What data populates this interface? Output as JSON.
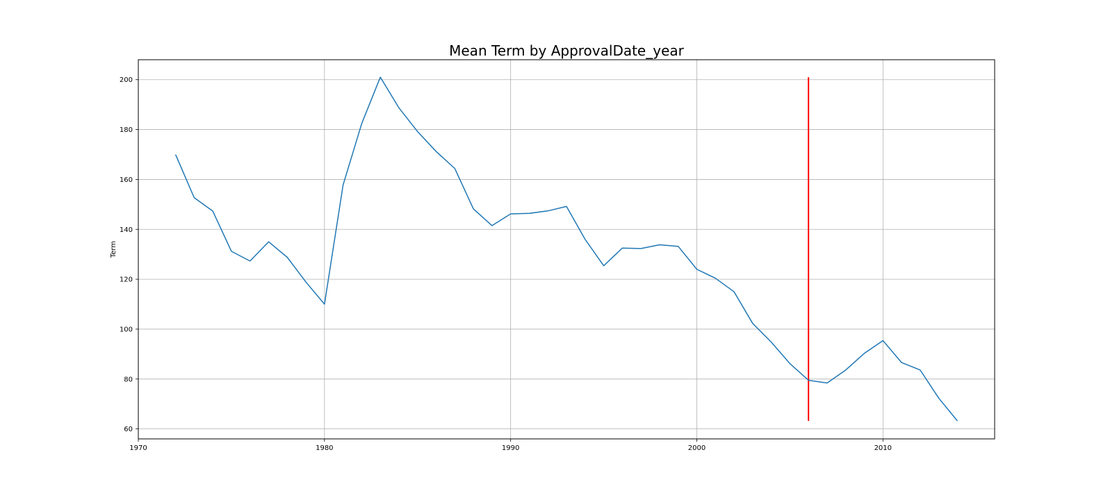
{
  "chart_data": {
    "type": "line",
    "title": "Mean Term by ApprovalDate_year",
    "xlabel": "",
    "ylabel": "Term",
    "xlim": [
      1970,
      2016
    ],
    "ylim": [
      56,
      208
    ],
    "x_ticks": [
      1970,
      1980,
      1990,
      2000,
      2010
    ],
    "y_ticks": [
      60,
      80,
      100,
      120,
      140,
      160,
      180,
      200
    ],
    "grid": true,
    "series": [
      {
        "color": "#1f77b4",
        "x": [
          1972,
          1973,
          1974,
          1975,
          1976,
          1977,
          1978,
          1979,
          1980,
          1981,
          1982,
          1983,
          1984,
          1985,
          1986,
          1987,
          1988,
          1989,
          1990,
          1991,
          1992,
          1993,
          1994,
          1995,
          1996,
          1997,
          1998,
          1999,
          2000,
          2001,
          2002,
          2003,
          2004,
          2005,
          2006,
          2007,
          2008,
          2009,
          2010,
          2011,
          2012,
          2013,
          2014
        ],
        "y": [
          170,
          152.7,
          147.3,
          131.2,
          127.3,
          135,
          128.8,
          118.9,
          110,
          157.8,
          182.4,
          201,
          188.7,
          179.2,
          171.2,
          164.4,
          148.2,
          141.5,
          146.2,
          146.4,
          147.4,
          149.2,
          136,
          125.4,
          132.5,
          132.3,
          133.8,
          133.2,
          124,
          120.4,
          115,
          102.3,
          94.8,
          86.2,
          79.5,
          78.4,
          83.6,
          90.3,
          95.4,
          86.6,
          83.6,
          72.3,
          63.2
        ]
      }
    ],
    "vline": {
      "x": 2006,
      "ymin": 63.2,
      "ymax": 201,
      "color": "#ff0000"
    }
  }
}
